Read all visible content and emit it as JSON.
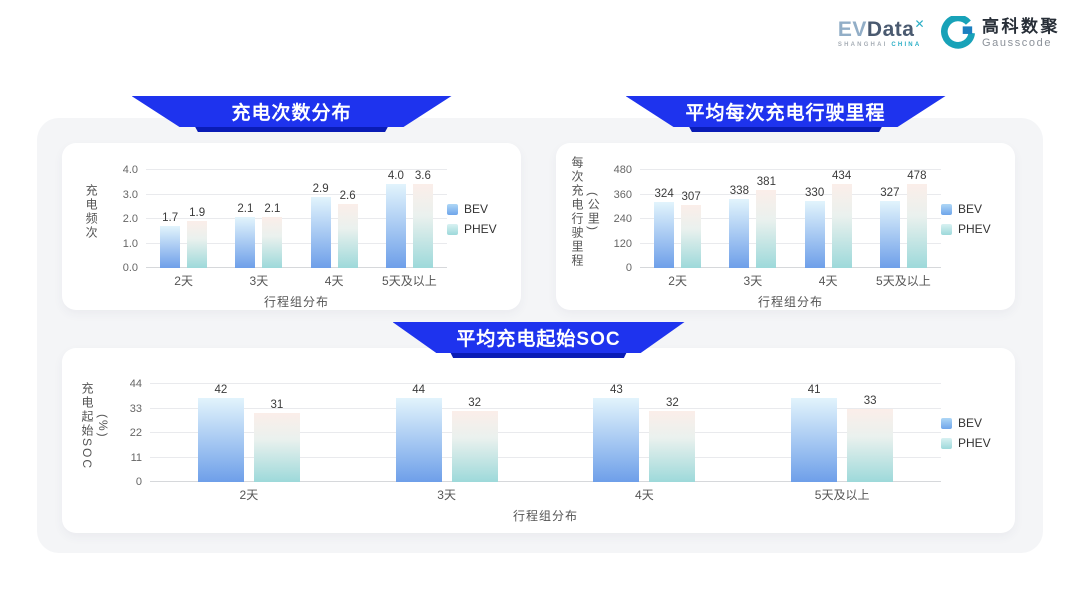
{
  "brand": {
    "evdata_name_ev": "EV",
    "evdata_name_data": "Data",
    "evdata_mark": "✕",
    "evdata_tagline_city": "SHANGHAI",
    "evdata_tagline_country": "CHINA",
    "gausscode_cn": "高科数聚",
    "gausscode_en": "Gausscode"
  },
  "colors": {
    "banner_blue": "#1e33ee",
    "banner_shadow_blue": "#0a1cb5",
    "panel_background": "#f4f5f7",
    "card_background": "#ffffff",
    "bev_gradient_top": "#e2f4fc",
    "bev_gradient_bottom": "#6e9fe9",
    "phev_gradient_top": "#fbeee9",
    "phev_gradient_bottom": "#9dd9da",
    "brand_slate": "#4a5a70",
    "brand_teal": "#2aaec6"
  },
  "chart_data": [
    {
      "type": "bar",
      "title": "充电次数分布",
      "categories": [
        "2天",
        "3天",
        "4天",
        "5天及以上"
      ],
      "series": [
        {
          "name": "BEV",
          "color_top": "#e2f4fc",
          "color_bottom": "#6e9fe9",
          "values": [
            1.7,
            2.1,
            2.9,
            4.0
          ]
        },
        {
          "name": "PHEV",
          "color_top": "#fbeee9",
          "color_bottom": "#9dd9da",
          "values": [
            1.9,
            2.1,
            2.6,
            3.6
          ]
        }
      ],
      "xlabel": "行程组分布",
      "ylabel_lines": [
        "充电频次"
      ],
      "ylim": [
        0,
        4
      ],
      "ytick_values": [
        0,
        1,
        2,
        3,
        4
      ],
      "ytick_labels": [
        "0.0",
        "1.0",
        "2.0",
        "3.0",
        "4.0"
      ],
      "value_decimals": 1,
      "legend_position": "right",
      "grid": true
    },
    {
      "type": "bar",
      "title": "平均每次充电行驶里程",
      "categories": [
        "2天",
        "3天",
        "4天",
        "5天及以上"
      ],
      "series": [
        {
          "name": "BEV",
          "color_top": "#e2f4fc",
          "color_bottom": "#6e9fe9",
          "values": [
            324,
            338,
            330,
            327
          ]
        },
        {
          "name": "PHEV",
          "color_top": "#fbeee9",
          "color_bottom": "#9dd9da",
          "values": [
            307,
            381,
            434,
            478
          ]
        }
      ],
      "xlabel": "行程组分布",
      "ylabel_lines": [
        "每次充电行驶里程",
        "(公里)"
      ],
      "ylim": [
        0,
        480
      ],
      "ytick_values": [
        0,
        120,
        240,
        360,
        480
      ],
      "ytick_labels": [
        "0",
        "120",
        "240",
        "360",
        "480"
      ],
      "value_decimals": 0,
      "legend_position": "right",
      "grid": true
    },
    {
      "type": "bar",
      "title": "平均充电起始SOC",
      "categories": [
        "2天",
        "3天",
        "4天",
        "5天及以上"
      ],
      "series": [
        {
          "name": "BEV",
          "color_top": "#e2f4fc",
          "color_bottom": "#6e9fe9",
          "values": [
            42,
            44,
            43,
            41
          ]
        },
        {
          "name": "PHEV",
          "color_top": "#fbeee9",
          "color_bottom": "#9dd9da",
          "values": [
            31,
            32,
            32,
            33
          ]
        }
      ],
      "xlabel": "行程组分布",
      "ylabel_lines": [
        "充电起始SOC",
        "(%)"
      ],
      "ylim": [
        0,
        44
      ],
      "ytick_values": [
        0,
        11,
        22,
        33,
        44
      ],
      "ytick_labels": [
        "0",
        "11",
        "22",
        "33",
        "44"
      ],
      "value_decimals": 0,
      "legend_position": "right",
      "grid": true
    }
  ]
}
